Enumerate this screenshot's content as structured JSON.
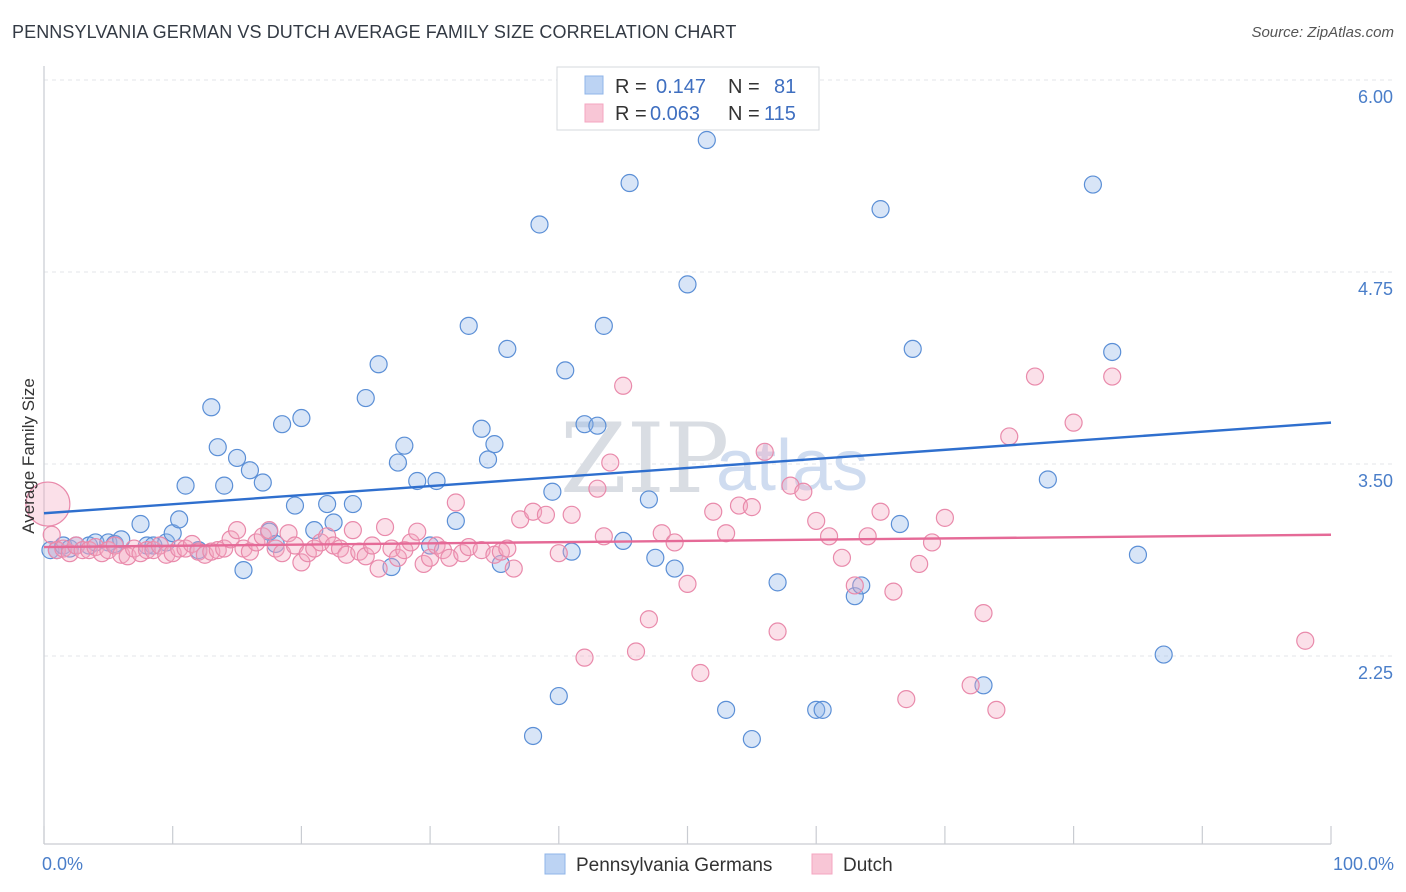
{
  "title": "PENNSYLVANIA GERMAN VS DUTCH AVERAGE FAMILY SIZE CORRELATION CHART",
  "source": "Source: ZipAtlas.com",
  "watermark": {
    "zip": "ZIP",
    "atlas": "atlas"
  },
  "legend": {
    "rows": [
      {
        "r_label": "R =",
        "r_value": "0.147",
        "n_label": "N =",
        "n_value": "81",
        "color": "#8fb4e8"
      },
      {
        "r_label": "R =",
        "r_value": "0.063",
        "n_label": "N =",
        "n_value": "115",
        "color": "#f4a6c0"
      }
    ]
  },
  "bottom_legend": [
    {
      "label": "Pennsylvania Germans",
      "color": "#8fb4e8"
    },
    {
      "label": "Dutch",
      "color": "#f4a6c0"
    }
  ],
  "chart_data": {
    "type": "scatter",
    "xlabel": "",
    "ylabel": "Average Family Size",
    "xlim": [
      0,
      100
    ],
    "ylim": [
      1.2,
      6.2
    ],
    "yticks": [
      2.25,
      3.5,
      4.75,
      6.0
    ],
    "ytick_labels": [
      "2.25",
      "3.50",
      "4.75",
      "6.00"
    ],
    "x_axis_labels": {
      "left": "0.0%",
      "right": "100.0%"
    },
    "grid": true,
    "series": [
      {
        "name": "Pennsylvania Germans",
        "color": "#8fb4e8",
        "stroke": "#5b8fd6",
        "trend": {
          "x": [
            0,
            100
          ],
          "y": [
            3.29,
            3.88
          ],
          "color": "#2f6fce"
        },
        "points": [
          [
            0.5,
            3.05
          ],
          [
            1,
            3.05
          ],
          [
            1.5,
            3.08
          ],
          [
            2,
            3.06
          ],
          [
            2.5,
            3.08
          ],
          [
            3.5,
            3.08
          ],
          [
            4,
            3.1
          ],
          [
            5,
            3.1
          ],
          [
            5.5,
            3.09
          ],
          [
            6,
            3.12
          ],
          [
            7.5,
            3.22
          ],
          [
            8,
            3.08
          ],
          [
            8.5,
            3.08
          ],
          [
            9.5,
            3.1
          ],
          [
            10,
            3.16
          ],
          [
            10.5,
            3.25
          ],
          [
            11,
            3.47
          ],
          [
            12,
            3.05
          ],
          [
            13,
            3.98
          ],
          [
            13.5,
            3.72
          ],
          [
            14,
            3.47
          ],
          [
            15,
            3.65
          ],
          [
            15.5,
            2.92
          ],
          [
            16,
            3.57
          ],
          [
            17,
            3.49
          ],
          [
            17.5,
            3.17
          ],
          [
            18,
            3.09
          ],
          [
            18.5,
            3.87
          ],
          [
            19.5,
            3.34
          ],
          [
            20,
            3.91
          ],
          [
            21,
            3.18
          ],
          [
            22,
            3.35
          ],
          [
            22.5,
            3.23
          ],
          [
            24,
            3.35
          ],
          [
            25,
            4.04
          ],
          [
            26,
            4.26
          ],
          [
            27,
            2.94
          ],
          [
            27.5,
            3.62
          ],
          [
            28,
            3.73
          ],
          [
            29,
            3.5
          ],
          [
            30,
            3.08
          ],
          [
            30.5,
            3.5
          ],
          [
            32,
            3.24
          ],
          [
            33,
            4.51
          ],
          [
            34,
            3.84
          ],
          [
            34.5,
            3.64
          ],
          [
            35,
            3.74
          ],
          [
            35.5,
            2.96
          ],
          [
            36,
            4.36
          ],
          [
            38,
            1.84
          ],
          [
            38.5,
            5.17
          ],
          [
            39.5,
            3.43
          ],
          [
            40,
            2.1
          ],
          [
            40.5,
            4.22
          ],
          [
            41,
            3.04
          ],
          [
            42,
            3.87
          ],
          [
            43,
            3.86
          ],
          [
            43.5,
            4.51
          ],
          [
            45,
            3.11
          ],
          [
            45.5,
            5.44
          ],
          [
            47,
            3.38
          ],
          [
            47.5,
            3.0
          ],
          [
            49,
            2.93
          ],
          [
            50,
            4.78
          ],
          [
            51.5,
            5.72
          ],
          [
            53,
            2.01
          ],
          [
            55,
            1.82
          ],
          [
            57,
            2.84
          ],
          [
            60,
            2.01
          ],
          [
            60.5,
            2.01
          ],
          [
            63,
            2.75
          ],
          [
            63.5,
            2.82
          ],
          [
            65,
            5.27
          ],
          [
            66.5,
            3.22
          ],
          [
            67.5,
            4.36
          ],
          [
            73,
            2.17
          ],
          [
            78,
            3.51
          ],
          [
            81.5,
            5.43
          ],
          [
            83,
            4.34
          ],
          [
            85,
            3.02
          ],
          [
            87,
            2.37
          ]
        ]
      },
      {
        "name": "Dutch",
        "color": "#f4a6c0",
        "stroke": "#e98aab",
        "trend": {
          "x": [
            0,
            100
          ],
          "y": [
            3.07,
            3.15
          ],
          "color": "#e56a97"
        },
        "points": [
          [
            0.3,
            3.35
          ],
          [
            0.6,
            3.15
          ],
          [
            1,
            3.05
          ],
          [
            1.5,
            3.06
          ],
          [
            2,
            3.03
          ],
          [
            2.5,
            3.08
          ],
          [
            3,
            3.05
          ],
          [
            3.5,
            3.05
          ],
          [
            4,
            3.07
          ],
          [
            4.5,
            3.03
          ],
          [
            5,
            3.05
          ],
          [
            5.5,
            3.08
          ],
          [
            6,
            3.02
          ],
          [
            6.5,
            3.01
          ],
          [
            7,
            3.06
          ],
          [
            7.5,
            3.03
          ],
          [
            8,
            3.05
          ],
          [
            8.5,
            3.05
          ],
          [
            9,
            3.08
          ],
          [
            9.5,
            3.02
          ],
          [
            10,
            3.03
          ],
          [
            10.5,
            3.06
          ],
          [
            11,
            3.06
          ],
          [
            11.5,
            3.09
          ],
          [
            12,
            3.04
          ],
          [
            12.5,
            3.02
          ],
          [
            13,
            3.04
          ],
          [
            13.5,
            3.05
          ],
          [
            14,
            3.06
          ],
          [
            14.5,
            3.12
          ],
          [
            15,
            3.18
          ],
          [
            15.5,
            3.06
          ],
          [
            16,
            3.04
          ],
          [
            16.5,
            3.1
          ],
          [
            17,
            3.14
          ],
          [
            17.5,
            3.18
          ],
          [
            18,
            3.06
          ],
          [
            18.5,
            3.03
          ],
          [
            19,
            3.16
          ],
          [
            19.5,
            3.08
          ],
          [
            20,
            2.97
          ],
          [
            20.5,
            3.03
          ],
          [
            21,
            3.06
          ],
          [
            21.5,
            3.1
          ],
          [
            22,
            3.14
          ],
          [
            22.5,
            3.08
          ],
          [
            23,
            3.06
          ],
          [
            23.5,
            3.02
          ],
          [
            24,
            3.18
          ],
          [
            24.5,
            3.04
          ],
          [
            25,
            3.01
          ],
          [
            25.5,
            3.08
          ],
          [
            26,
            2.93
          ],
          [
            26.5,
            3.2
          ],
          [
            27,
            3.06
          ],
          [
            27.5,
            3.0
          ],
          [
            28,
            3.05
          ],
          [
            28.5,
            3.1
          ],
          [
            29,
            3.17
          ],
          [
            29.5,
            2.96
          ],
          [
            30,
            3.0
          ],
          [
            30.5,
            3.08
          ],
          [
            31,
            3.05
          ],
          [
            31.5,
            3.0
          ],
          [
            32,
            3.36
          ],
          [
            32.5,
            3.03
          ],
          [
            33,
            3.07
          ],
          [
            34,
            3.05
          ],
          [
            35,
            3.02
          ],
          [
            35.5,
            3.04
          ],
          [
            36,
            3.06
          ],
          [
            36.5,
            2.93
          ],
          [
            37,
            3.25
          ],
          [
            38,
            3.3
          ],
          [
            39,
            3.28
          ],
          [
            40,
            3.03
          ],
          [
            41,
            3.28
          ],
          [
            42,
            2.35
          ],
          [
            43,
            3.45
          ],
          [
            43.5,
            3.14
          ],
          [
            44,
            3.62
          ],
          [
            45,
            4.12
          ],
          [
            46,
            2.39
          ],
          [
            47,
            2.6
          ],
          [
            48,
            3.16
          ],
          [
            49,
            3.1
          ],
          [
            50,
            2.83
          ],
          [
            51,
            2.25
          ],
          [
            52,
            3.3
          ],
          [
            53,
            3.16
          ],
          [
            54,
            3.34
          ],
          [
            55,
            3.33
          ],
          [
            56,
            3.69
          ],
          [
            57,
            2.52
          ],
          [
            58,
            3.47
          ],
          [
            59,
            3.43
          ],
          [
            60,
            3.24
          ],
          [
            61,
            3.14
          ],
          [
            62,
            3.0
          ],
          [
            63,
            2.82
          ],
          [
            64,
            3.14
          ],
          [
            65,
            3.3
          ],
          [
            66,
            2.78
          ],
          [
            67,
            2.08
          ],
          [
            68,
            2.96
          ],
          [
            69,
            3.1
          ],
          [
            70,
            3.26
          ],
          [
            72,
            2.17
          ],
          [
            73,
            2.64
          ],
          [
            74,
            2.01
          ],
          [
            75,
            3.79
          ],
          [
            77,
            4.18
          ],
          [
            80,
            3.88
          ],
          [
            83,
            4.18
          ],
          [
            98,
            2.46
          ]
        ]
      }
    ]
  }
}
